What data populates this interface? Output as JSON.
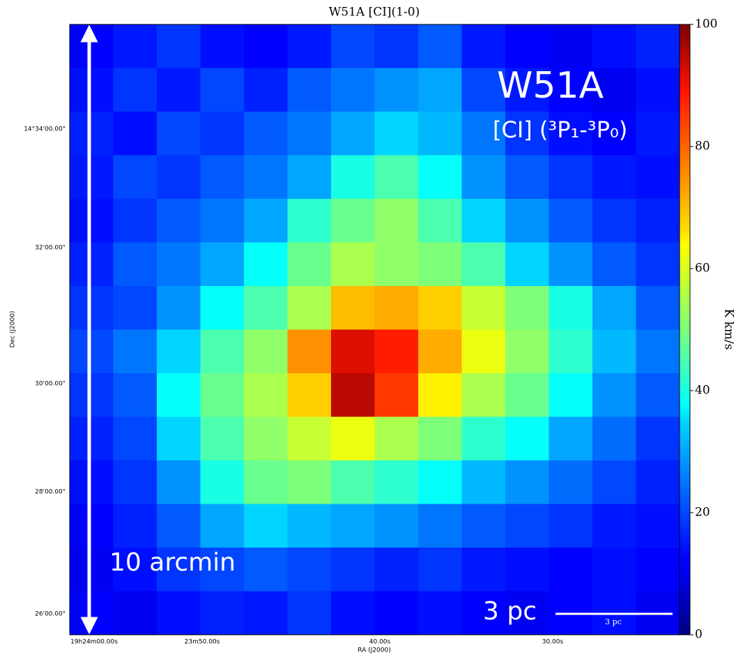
{
  "chart_data": {
    "type": "heatmap",
    "title": "W51A [CI](1-0)",
    "x_label": "RA (J2000)",
    "y_label": "Dec (J2000)",
    "colorbar_label": "K km/s",
    "colormap": "jet",
    "clim": [
      0,
      100
    ],
    "cticks": [
      0,
      20,
      40,
      60,
      80,
      100
    ],
    "xtick_labels": [
      "19h24m00.00s",
      "23m50.00s",
      "40.00s",
      "30.00s"
    ],
    "ytick_labels": [
      "14°34'00.00\"",
      "32'00.00\"",
      "30'00.00\"",
      "28'00.00\"",
      "26'00.00\""
    ],
    "annotations": [
      "W51A",
      "[CI] (³P₁-³P₀)",
      "10 arcmin",
      "3 pc"
    ],
    "scalebar_label": "3 pc",
    "values": [
      [
        12,
        15,
        18,
        14,
        12,
        15,
        20,
        18,
        22,
        15,
        12,
        10,
        14,
        16
      ],
      [
        14,
        18,
        15,
        20,
        16,
        22,
        25,
        28,
        30,
        20,
        15,
        12,
        10,
        14
      ],
      [
        16,
        14,
        20,
        18,
        22,
        25,
        30,
        35,
        32,
        25,
        18,
        14,
        12,
        15
      ],
      [
        15,
        20,
        18,
        22,
        25,
        30,
        40,
        45,
        38,
        28,
        22,
        18,
        15,
        14
      ],
      [
        14,
        18,
        22,
        25,
        30,
        42,
        48,
        52,
        45,
        35,
        28,
        22,
        18,
        16
      ],
      [
        16,
        22,
        25,
        30,
        38,
        48,
        55,
        52,
        50,
        45,
        35,
        28,
        22,
        18
      ],
      [
        18,
        20,
        28,
        38,
        45,
        55,
        70,
        72,
        68,
        58,
        50,
        40,
        30,
        22
      ],
      [
        20,
        25,
        35,
        45,
        52,
        75,
        92,
        88,
        72,
        62,
        52,
        42,
        32,
        25
      ],
      [
        18,
        22,
        38,
        48,
        55,
        68,
        95,
        85,
        65,
        55,
        48,
        38,
        28,
        22
      ],
      [
        16,
        20,
        35,
        45,
        52,
        58,
        62,
        55,
        50,
        42,
        38,
        30,
        24,
        18
      ],
      [
        14,
        18,
        28,
        40,
        48,
        50,
        45,
        42,
        38,
        32,
        28,
        24,
        20,
        16
      ],
      [
        12,
        16,
        22,
        30,
        35,
        32,
        30,
        28,
        25,
        22,
        20,
        18,
        15,
        14
      ],
      [
        10,
        14,
        18,
        20,
        22,
        20,
        18,
        16,
        18,
        15,
        14,
        12,
        14,
        12
      ],
      [
        12,
        10,
        14,
        16,
        15,
        18,
        14,
        12,
        14,
        12,
        10,
        12,
        14,
        10
      ]
    ]
  }
}
